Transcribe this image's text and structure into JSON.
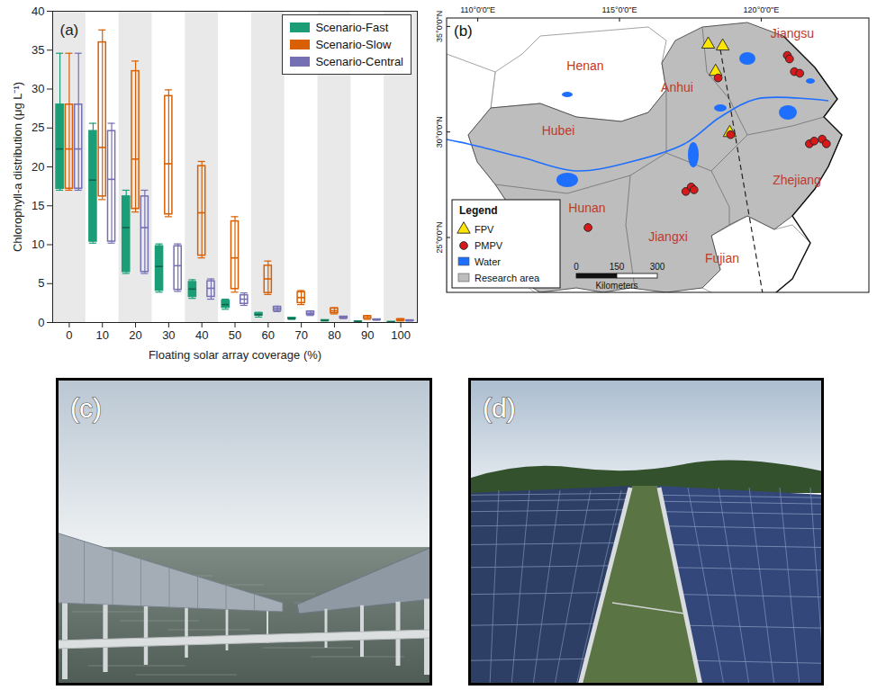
{
  "chart_data": {
    "type": "box",
    "panel": "(a)",
    "x_label": "Floating solar array coverage (%)",
    "y_label": "Chlorophyll-a distribution (μg L⁻¹)",
    "categories": [
      0,
      10,
      20,
      30,
      40,
      50,
      60,
      70,
      80,
      90,
      100
    ],
    "ylim": [
      0,
      40
    ],
    "yticks": [
      0,
      5,
      10,
      15,
      20,
      25,
      30,
      35,
      40
    ],
    "legend": "top-right",
    "series": [
      {
        "name": "Scenario-Fast",
        "color": "#1b9e77",
        "min": [
          17,
          10.2,
          6.3,
          3.9,
          3.1,
          1.7,
          0.7,
          0.4,
          0.2,
          0.1,
          0.05
        ],
        "q1": [
          17.2,
          10.4,
          6.5,
          4.1,
          3.3,
          1.9,
          0.9,
          0.45,
          0.22,
          0.11,
          0.06
        ],
        "median": [
          22.3,
          18.3,
          12.2,
          7.2,
          4.3,
          2.3,
          1,
          0.5,
          0.26,
          0.13,
          0.07
        ],
        "q3": [
          28,
          24.6,
          16.2,
          9.8,
          5.2,
          2.8,
          1.2,
          0.6,
          0.3,
          0.15,
          0.09
        ],
        "max": [
          34.6,
          25.6,
          17,
          10.1,
          5.5,
          3,
          1.3,
          0.65,
          0.32,
          0.16,
          0.1
        ]
      },
      {
        "name": "Scenario-Slow",
        "color": "#d95f02",
        "min": [
          17,
          15.8,
          14.2,
          13.6,
          8.3,
          3.9,
          3.6,
          2.3,
          1.1,
          0.4,
          0.2
        ],
        "q1": [
          17.2,
          16.2,
          14.6,
          13.9,
          8.6,
          4.3,
          3.8,
          2.5,
          1.2,
          0.5,
          0.25
        ],
        "median": [
          22.3,
          22.5,
          21,
          20.4,
          14.1,
          8.3,
          5.6,
          3.2,
          1.5,
          0.6,
          0.3
        ],
        "q3": [
          28,
          36,
          32.3,
          29.1,
          20.1,
          13,
          7.3,
          3.9,
          1.8,
          0.8,
          0.4
        ],
        "max": [
          34.6,
          37.6,
          33.6,
          29.9,
          20.7,
          13.6,
          7.9,
          4.1,
          1.9,
          0.9,
          0.5
        ]
      },
      {
        "name": "Scenario-Central",
        "color": "#7570b3",
        "min": [
          17,
          10.2,
          6.3,
          4,
          3,
          2.2,
          1.4,
          0.9,
          0.5,
          0.3,
          0.2
        ],
        "q1": [
          17.2,
          10.4,
          6.5,
          4.2,
          3.3,
          2.4,
          1.5,
          1,
          0.55,
          0.32,
          0.22
        ],
        "median": [
          22.3,
          18.4,
          12.2,
          7.3,
          4.4,
          3,
          1.8,
          1.2,
          0.65,
          0.36,
          0.25
        ],
        "q3": [
          28,
          24.6,
          16.2,
          9.8,
          5.3,
          3.5,
          2,
          1.4,
          0.75,
          0.4,
          0.28
        ],
        "max": [
          34.6,
          25.6,
          17,
          10.1,
          5.6,
          3.8,
          2.1,
          1.5,
          0.8,
          0.42,
          0.3
        ]
      }
    ]
  },
  "map": {
    "panel": "(b)",
    "lonlim": [
      108.9,
      123.8
    ],
    "latlim": [
      22.4,
      35.4
    ],
    "lon_ticks": [
      {
        "value": 110,
        "label": "110°0'0\"E"
      },
      {
        "value": 115,
        "label": "115°0'0\"E"
      },
      {
        "value": 120,
        "label": "120°0'0\"E"
      }
    ],
    "lat_ticks": [
      {
        "value": 25,
        "label": "25°0'0\"N"
      },
      {
        "value": 30,
        "label": "30°0'0\"N"
      },
      {
        "value": 35,
        "label": "35°0'0\"N"
      }
    ],
    "regions": [
      "Henan",
      "Jiangsu",
      "Anhui",
      "Hubei",
      "Zhejiang",
      "Hunan",
      "Jiangxi",
      "Fujian"
    ],
    "legend": {
      "title": "Legend",
      "items": [
        {
          "name": "FPV",
          "marker": "triangle",
          "color": "#ffe600"
        },
        {
          "name": "PMPV",
          "marker": "circle",
          "color": "#d7191c"
        },
        {
          "name": "Water",
          "marker": "square",
          "color": "#1f6fff"
        },
        {
          "name": "Research area",
          "marker": "square",
          "color": "#bdbdbd"
        }
      ]
    },
    "scale_bar": {
      "ticks": [
        0,
        150,
        300
      ],
      "label": "Kilometers"
    },
    "sites": [
      {
        "name": "FPV",
        "lon": [
          118.13,
          118.64,
          118.39,
          118.89
        ],
        "lat": [
          34.15,
          34.06,
          32.86,
          29.96
        ]
      },
      {
        "name": "PMPV",
        "lon": [
          118.48,
          118.92,
          120.92,
          121.0,
          121.17,
          121.36,
          121.7,
          121.87,
          122.15,
          122.3,
          117.34,
          117.53,
          117.63,
          113.89
        ],
        "lat": [
          32.56,
          29.87,
          33.63,
          33.46,
          32.86,
          32.78,
          29.44,
          29.57,
          29.66,
          29.44,
          27.18,
          27.39,
          27.26,
          25.47
        ]
      }
    ]
  },
  "photos": [
    {
      "panel": "(c)"
    },
    {
      "panel": "(d)"
    }
  ]
}
